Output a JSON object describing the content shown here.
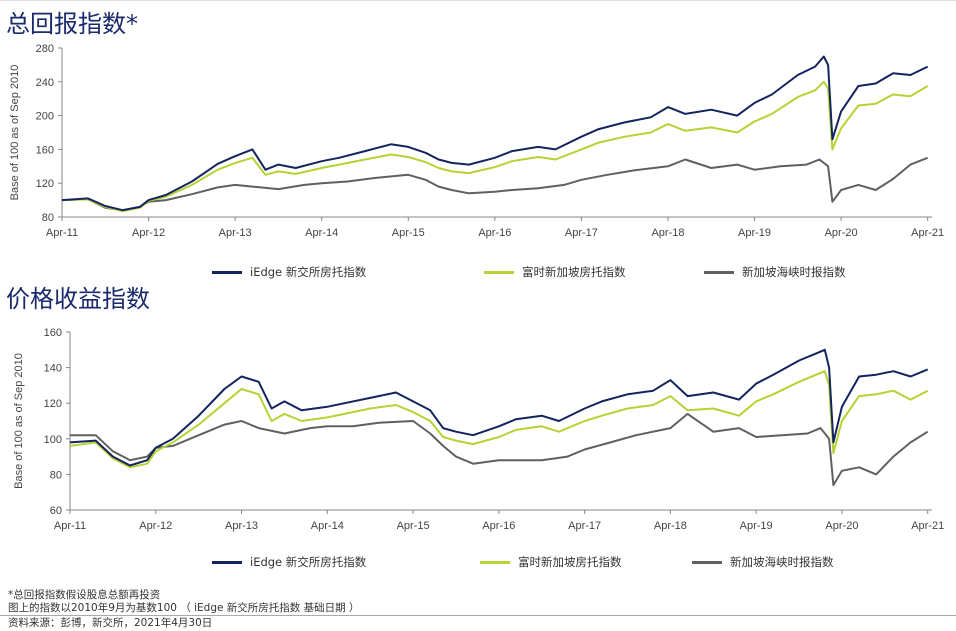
{
  "colors": {
    "s1": "#14245e",
    "s2": "#b4d334",
    "s3": "#606060",
    "axis": "#888888"
  },
  "legend": [
    "iEdge 新交所房托指数",
    "富时新加坡房托指数",
    "新加坡海峡时报指数"
  ],
  "footnotes": [
    "*总回报指数假设股息总额再投资",
    "图上的指数以2010年9月为基数100 （ iEdge 新交所房托指数 基础日期 ）",
    "资料来源：彭博，新交所，2021年4月30日"
  ],
  "chart_data": [
    {
      "type": "line",
      "title": "总回报指数*",
      "xlabel": "",
      "ylabel": "Base of 100 as of Sep 2010",
      "xticks": [
        "Apr-11",
        "Apr-12",
        "Apr-13",
        "Apr-14",
        "Apr-15",
        "Apr-16",
        "Apr-17",
        "Apr-18",
        "Apr-19",
        "Apr-20",
        "Apr-21"
      ],
      "xlim": [
        0,
        10.05
      ],
      "ylim": [
        80,
        280
      ],
      "yticks": [
        80,
        120,
        160,
        200,
        240,
        280
      ],
      "grid": false,
      "legend_position": "bottom",
      "series": [
        {
          "name": "iEdge 新交所房托指数",
          "x": [
            0,
            0.3,
            0.5,
            0.7,
            0.9,
            1.0,
            1.2,
            1.5,
            1.8,
            2.0,
            2.2,
            2.35,
            2.5,
            2.7,
            3.0,
            3.2,
            3.5,
            3.8,
            4.0,
            4.2,
            4.35,
            4.5,
            4.7,
            5.0,
            5.2,
            5.5,
            5.7,
            6.0,
            6.2,
            6.5,
            6.8,
            7.0,
            7.2,
            7.5,
            7.8,
            8.0,
            8.2,
            8.5,
            8.7,
            8.8,
            8.85,
            8.9,
            9.0,
            9.2,
            9.4,
            9.6,
            9.8,
            10.0
          ],
          "y": [
            100,
            102,
            93,
            88,
            92,
            100,
            106,
            122,
            143,
            152,
            160,
            136,
            142,
            138,
            146,
            150,
            158,
            166,
            163,
            156,
            148,
            144,
            142,
            150,
            158,
            163,
            160,
            175,
            184,
            192,
            198,
            210,
            202,
            207,
            200,
            215,
            225,
            248,
            258,
            270,
            260,
            172,
            205,
            235,
            238,
            250,
            248,
            258
          ]
        },
        {
          "name": "富时新加坡房托指数",
          "x": [
            0,
            0.3,
            0.5,
            0.7,
            0.9,
            1.0,
            1.2,
            1.5,
            1.8,
            2.0,
            2.2,
            2.35,
            2.5,
            2.7,
            3.0,
            3.2,
            3.5,
            3.8,
            4.0,
            4.2,
            4.35,
            4.5,
            4.7,
            5.0,
            5.2,
            5.5,
            5.7,
            6.0,
            6.2,
            6.5,
            6.8,
            7.0,
            7.2,
            7.5,
            7.8,
            8.0,
            8.2,
            8.5,
            8.7,
            8.8,
            8.85,
            8.9,
            9.0,
            9.2,
            9.4,
            9.6,
            9.8,
            10.0
          ],
          "y": [
            100,
            101,
            92,
            87,
            91,
            99,
            104,
            118,
            136,
            144,
            150,
            130,
            134,
            131,
            138,
            142,
            148,
            154,
            151,
            145,
            138,
            134,
            132,
            139,
            146,
            151,
            148,
            160,
            168,
            175,
            180,
            190,
            182,
            186,
            180,
            193,
            202,
            222,
            230,
            240,
            232,
            160,
            185,
            212,
            214,
            225,
            223,
            235
          ]
        },
        {
          "name": "新加坡海峡时报指数",
          "x": [
            0,
            0.3,
            0.5,
            0.7,
            0.9,
            1.0,
            1.2,
            1.5,
            1.8,
            2.0,
            2.2,
            2.5,
            2.8,
            3.0,
            3.3,
            3.6,
            4.0,
            4.2,
            4.35,
            4.5,
            4.7,
            5.0,
            5.2,
            5.5,
            5.8,
            6.0,
            6.3,
            6.6,
            7.0,
            7.2,
            7.5,
            7.8,
            8.0,
            8.3,
            8.6,
            8.75,
            8.85,
            8.9,
            9.0,
            9.2,
            9.4,
            9.6,
            9.8,
            10.0
          ],
          "y": [
            100,
            101,
            91,
            88,
            92,
            98,
            100,
            107,
            115,
            118,
            116,
            113,
            118,
            120,
            122,
            126,
            130,
            124,
            116,
            112,
            108,
            110,
            112,
            114,
            118,
            124,
            130,
            135,
            140,
            148,
            138,
            142,
            136,
            140,
            142,
            148,
            140,
            98,
            112,
            118,
            112,
            125,
            142,
            150
          ]
        }
      ]
    },
    {
      "type": "line",
      "title": "价格收益指数",
      "xlabel": "",
      "ylabel": "Base of 100 as of Sep 2010",
      "xticks": [
        "Apr-11",
        "Apr-12",
        "Apr-13",
        "Apr-14",
        "Apr-15",
        "Apr-16",
        "Apr-17",
        "Apr-18",
        "Apr-19",
        "Apr-20",
        "Apr-21"
      ],
      "xlim": [
        0,
        10.05
      ],
      "ylim": [
        60,
        160
      ],
      "yticks": [
        60,
        80,
        100,
        120,
        140,
        160
      ],
      "grid": false,
      "legend_position": "bottom",
      "series": [
        {
          "name": "iEdge 新交所房托指数",
          "x": [
            0,
            0.3,
            0.5,
            0.7,
            0.9,
            1.0,
            1.2,
            1.5,
            1.8,
            2.0,
            2.2,
            2.35,
            2.5,
            2.7,
            3.0,
            3.2,
            3.5,
            3.8,
            4.0,
            4.2,
            4.35,
            4.5,
            4.7,
            5.0,
            5.2,
            5.5,
            5.7,
            6.0,
            6.2,
            6.5,
            6.8,
            7.0,
            7.2,
            7.5,
            7.8,
            8.0,
            8.2,
            8.5,
            8.7,
            8.8,
            8.85,
            8.9,
            9.0,
            9.2,
            9.4,
            9.6,
            9.8,
            10.0
          ],
          "y": [
            98,
            99,
            90,
            85,
            88,
            95,
            100,
            113,
            128,
            135,
            132,
            117,
            121,
            116,
            118,
            120,
            123,
            126,
            121,
            116,
            106,
            104,
            102,
            107,
            111,
            113,
            110,
            117,
            121,
            125,
            127,
            133,
            124,
            126,
            122,
            131,
            136,
            144,
            148,
            150,
            140,
            98,
            118,
            135,
            136,
            138,
            135,
            139
          ]
        },
        {
          "name": "富时新加坡房托指数",
          "x": [
            0,
            0.3,
            0.5,
            0.7,
            0.9,
            1.0,
            1.2,
            1.5,
            1.8,
            2.0,
            2.2,
            2.35,
            2.5,
            2.7,
            3.0,
            3.2,
            3.5,
            3.8,
            4.0,
            4.2,
            4.35,
            4.5,
            4.7,
            5.0,
            5.2,
            5.5,
            5.7,
            6.0,
            6.2,
            6.5,
            6.8,
            7.0,
            7.2,
            7.5,
            7.8,
            8.0,
            8.2,
            8.5,
            8.7,
            8.8,
            8.85,
            8.9,
            9.0,
            9.2,
            9.4,
            9.6,
            9.8,
            10.0
          ],
          "y": [
            96,
            98,
            89,
            84,
            86,
            93,
            98,
            108,
            120,
            128,
            125,
            110,
            114,
            110,
            112,
            114,
            117,
            119,
            115,
            110,
            101,
            99,
            97,
            101,
            105,
            107,
            104,
            110,
            113,
            117,
            119,
            124,
            116,
            117,
            113,
            121,
            125,
            132,
            136,
            138,
            130,
            92,
            110,
            124,
            125,
            127,
            122,
            127
          ]
        },
        {
          "name": "新加坡海峡时报指数",
          "x": [
            0,
            0.3,
            0.5,
            0.7,
            0.9,
            1.0,
            1.2,
            1.5,
            1.8,
            2.0,
            2.2,
            2.5,
            2.8,
            3.0,
            3.3,
            3.6,
            4.0,
            4.2,
            4.35,
            4.5,
            4.7,
            5.0,
            5.2,
            5.5,
            5.8,
            6.0,
            6.3,
            6.6,
            7.0,
            7.2,
            7.5,
            7.8,
            8.0,
            8.3,
            8.6,
            8.75,
            8.85,
            8.9,
            9.0,
            9.2,
            9.4,
            9.6,
            9.8,
            10.0
          ],
          "y": [
            102,
            102,
            93,
            88,
            90,
            95,
            96,
            102,
            108,
            110,
            106,
            103,
            106,
            107,
            107,
            109,
            110,
            103,
            96,
            90,
            86,
            88,
            88,
            88,
            90,
            94,
            98,
            102,
            106,
            114,
            104,
            106,
            101,
            102,
            103,
            106,
            100,
            74,
            82,
            84,
            80,
            90,
            98,
            104
          ]
        }
      ]
    }
  ]
}
